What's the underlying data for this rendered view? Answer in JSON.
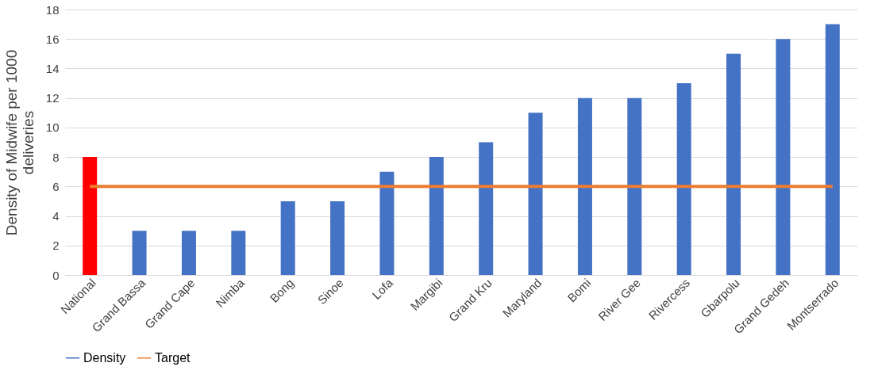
{
  "chart_data": {
    "type": "bar",
    "ylabel": "Density of Midwife per 1000 deliveries",
    "categories": [
      "National",
      "Grand Bassa",
      "Grand Cape",
      "Nimba",
      "Bong",
      "Sinoe",
      "Lofa",
      "Margibi",
      "Grand Kru",
      "Maryland",
      "Bomi",
      "River Gee",
      "Rivercess",
      "Gbarpolu",
      "Grand Gedeh",
      "Montserrado"
    ],
    "series": [
      {
        "name": "Density",
        "color": "#4472c4",
        "colors": [
          "#ff0000",
          "#4472c4",
          "#4472c4",
          "#4472c4",
          "#4472c4",
          "#4472c4",
          "#4472c4",
          "#4472c4",
          "#4472c4",
          "#4472c4",
          "#4472c4",
          "#4472c4",
          "#4472c4",
          "#4472c4",
          "#4472c4",
          "#4472c4"
        ],
        "values": [
          8,
          3,
          3,
          3,
          5,
          5,
          7,
          8,
          9,
          11,
          12,
          12,
          13,
          15,
          16,
          17
        ]
      },
      {
        "name": "Target",
        "type": "line",
        "color": "#ed7d31",
        "values": [
          6,
          6,
          6,
          6,
          6,
          6,
          6,
          6,
          6,
          6,
          6,
          6,
          6,
          6,
          6,
          6
        ]
      }
    ],
    "ylim": [
      0,
      18
    ],
    "yticks": [
      0,
      2,
      4,
      6,
      8,
      10,
      12,
      14,
      16,
      18
    ],
    "grid": "y",
    "legend": "bottom"
  }
}
